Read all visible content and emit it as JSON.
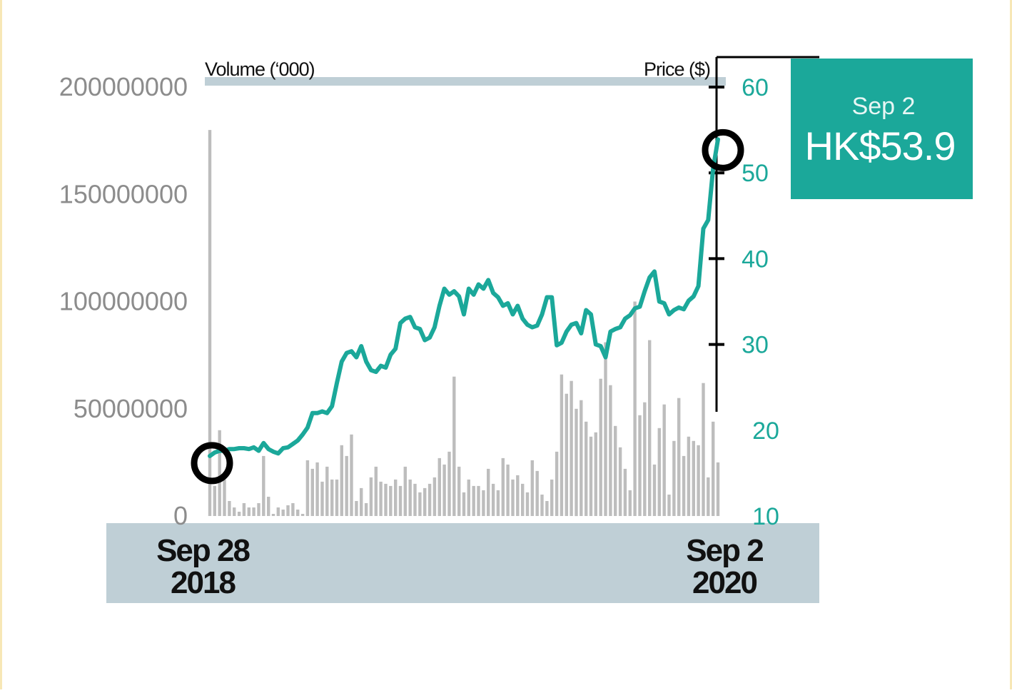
{
  "chart_data": {
    "type": "line",
    "title": "",
    "left_axis": {
      "label": "Volume (‘000)",
      "ticks": [
        "0",
        "50000000",
        "100000000",
        "150000000",
        "200000000"
      ],
      "range": [
        0,
        200000000
      ]
    },
    "right_axis": {
      "label": "Price ($)",
      "ticks": [
        "10",
        "20",
        "30",
        "40",
        "50",
        "60"
      ],
      "range": [
        10,
        60
      ]
    },
    "x_labels": {
      "start": [
        "Sep 28",
        "2018"
      ],
      "end": [
        "Sep 2",
        "2020"
      ]
    },
    "series": [
      {
        "kind": "line",
        "axis": "right",
        "color": "#1ba89a",
        "values": [
          17.0,
          17.4,
          17.6,
          17.6,
          17.8,
          17.8,
          17.9,
          17.9,
          17.8,
          18.0,
          17.6,
          18.5,
          17.8,
          17.5,
          17.3,
          17.9,
          18.0,
          18.4,
          18.8,
          19.5,
          20.3,
          22.0,
          22.0,
          22.2,
          22.0,
          22.8,
          25.5,
          28.0,
          29.0,
          29.2,
          28.5,
          29.8,
          28.0,
          27.0,
          26.8,
          27.5,
          27.3,
          28.8,
          29.5,
          32.5,
          33.0,
          33.2,
          32.0,
          31.8,
          30.5,
          30.8,
          32.0,
          34.5,
          36.5,
          35.8,
          36.2,
          35.6,
          33.5,
          36.5,
          35.8,
          37.0,
          36.5,
          37.5,
          36.0,
          35.5,
          34.5,
          34.8,
          33.5,
          34.5,
          33.0,
          32.3,
          32.0,
          32.2,
          33.5,
          35.5,
          35.5,
          29.9,
          30.2,
          31.5,
          32.3,
          32.5,
          31.3,
          34.0,
          33.5,
          30.0,
          29.8,
          28.5,
          31.5,
          31.8,
          32.0,
          33.0,
          33.4,
          34.2,
          34.4,
          36.2,
          37.8,
          38.5,
          35.0,
          34.8,
          33.5,
          34.0,
          34.3,
          34.1,
          35.1,
          35.6,
          36.8,
          43.5,
          44.5,
          50.5,
          53.9
        ]
      },
      {
        "kind": "bar",
        "axis": "left",
        "color": "#bdbdbd",
        "values": [
          180000000,
          14000000,
          40000000,
          17000000,
          7000000,
          4000000,
          2000000,
          6000000,
          4000000,
          4000000,
          6000000,
          28000000,
          9000000,
          1000000,
          4000000,
          3000000,
          5000000,
          6000000,
          3000000,
          1000000,
          26000000,
          22000000,
          25000000,
          16000000,
          23000000,
          17000000,
          17000000,
          33000000,
          28000000,
          38000000,
          7000000,
          13000000,
          6000000,
          18000000,
          23000000,
          16000000,
          15000000,
          14000000,
          17000000,
          14000000,
          23000000,
          17000000,
          15000000,
          11000000,
          13000000,
          15000000,
          18000000,
          27000000,
          24000000,
          30000000,
          65000000,
          23000000,
          11000000,
          17000000,
          14000000,
          14000000,
          12000000,
          22000000,
          15000000,
          12000000,
          27000000,
          24000000,
          17000000,
          19000000,
          15000000,
          11000000,
          26000000,
          21000000,
          10000000,
          7000000,
          17000000,
          30000000,
          66000000,
          57000000,
          63000000,
          50000000,
          54000000,
          44000000,
          37000000,
          39000000,
          64000000,
          81000000,
          61000000,
          42000000,
          32000000,
          22000000,
          12000000,
          100000000,
          47000000,
          53000000,
          82000000,
          24000000,
          41000000,
          52000000,
          10000000,
          35000000,
          55000000,
          28000000,
          37000000,
          35000000,
          33000000,
          62000000,
          18000000,
          44000000,
          25000000
        ]
      }
    ],
    "markers": [
      "start",
      "end"
    ],
    "callout": {
      "date": "Sep 2",
      "price": "HK$53.9",
      "color": "#1ba89a"
    }
  }
}
